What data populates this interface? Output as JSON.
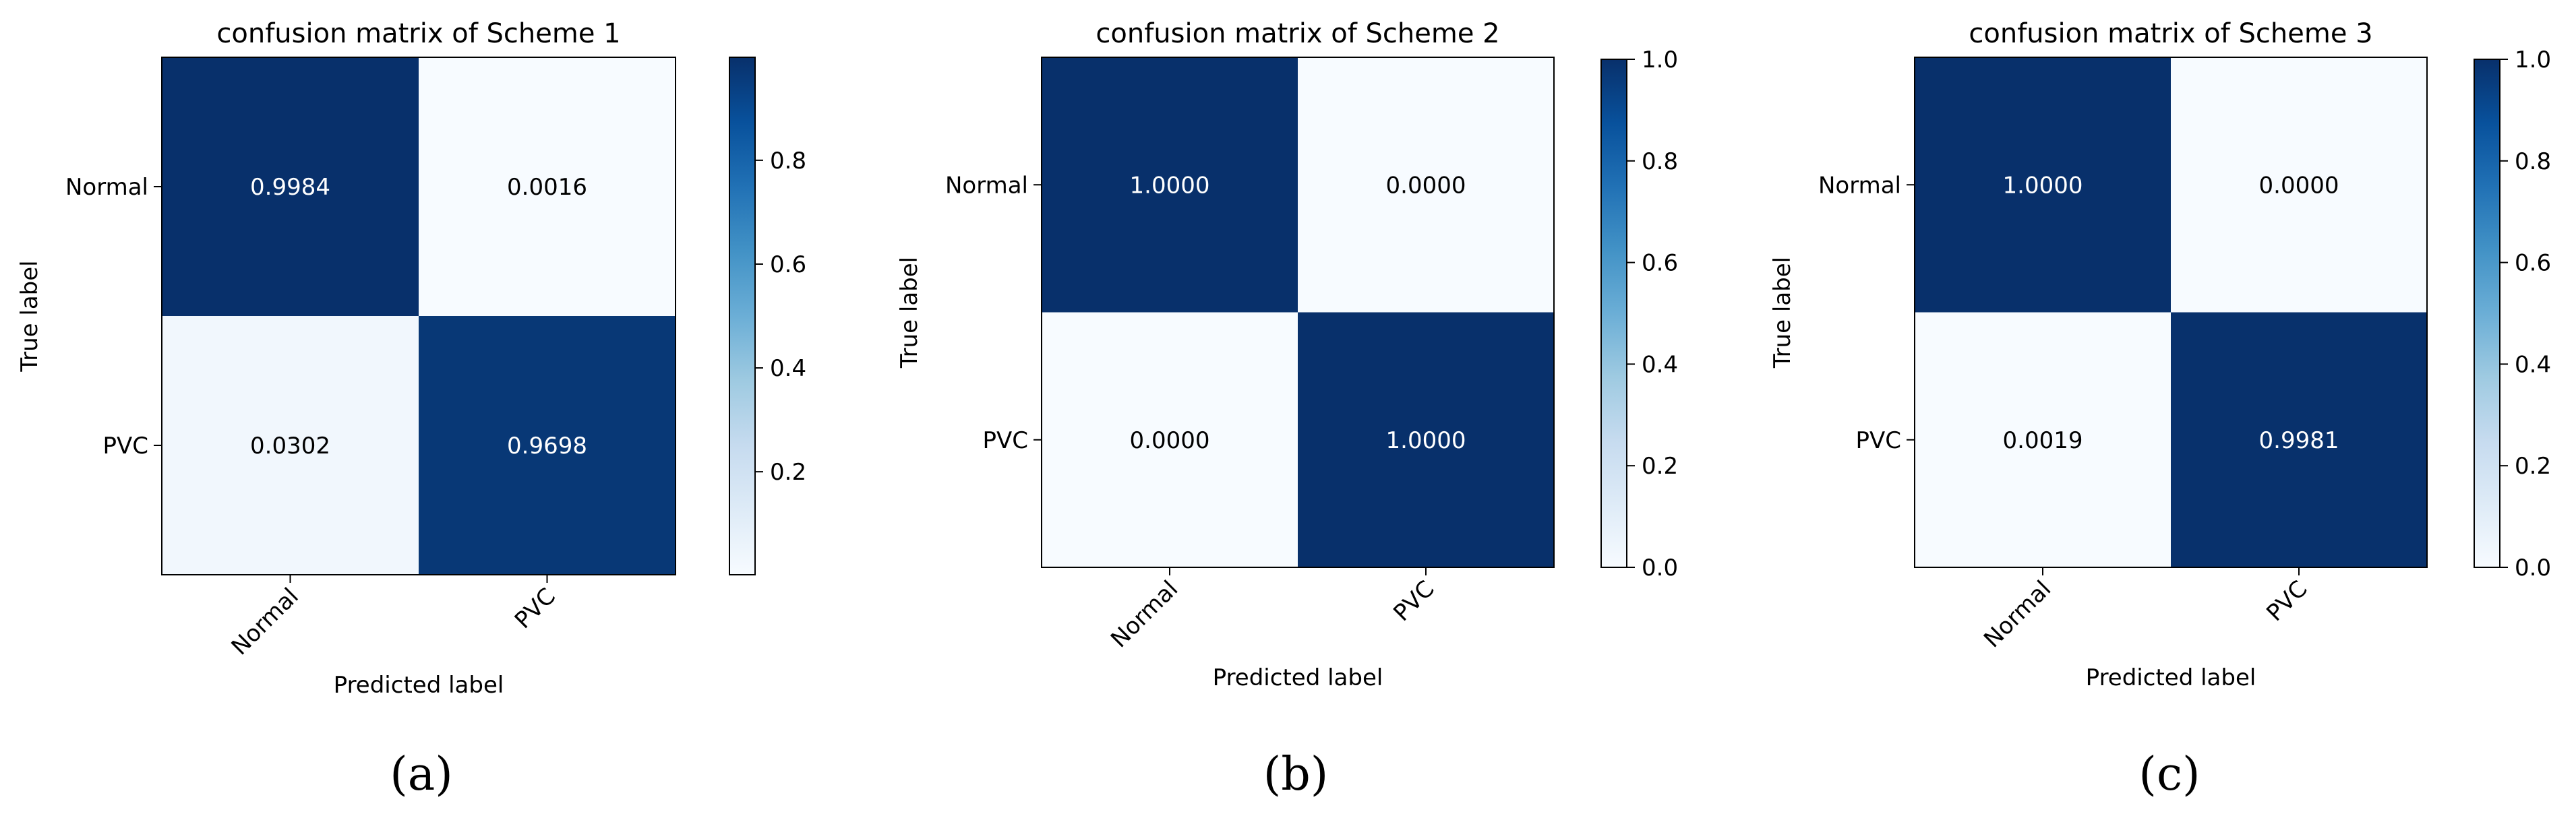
{
  "colors": {
    "high": "#08306b",
    "low": "#f7fbff",
    "text_on_dark": "#ffffff",
    "text_on_light": "#000000"
  },
  "chart_data": [
    {
      "type": "heatmap",
      "title": "confusion matrix of Scheme 1",
      "xlabel": "Predicted label",
      "ylabel": "True label",
      "panel_label": "(a)",
      "x_categories": [
        "Normal",
        "PVC"
      ],
      "y_categories": [
        "Normal",
        "PVC"
      ],
      "values": [
        [
          0.9984,
          0.0016
        ],
        [
          0.0302,
          0.9698
        ]
      ],
      "value_labels": [
        [
          "0.9984",
          "0.0016"
        ],
        [
          "0.0302",
          "0.9698"
        ]
      ],
      "colorbar": {
        "min": 0.0016,
        "max": 0.9984,
        "ticks": [
          0.2,
          0.4,
          0.6,
          0.8
        ],
        "tick_labels": [
          "0.2",
          "0.4",
          "0.6",
          "0.8"
        ],
        "colormap": "Blues"
      },
      "grid": false
    },
    {
      "type": "heatmap",
      "title": "confusion matrix of Scheme 2",
      "xlabel": "Predicted label",
      "ylabel": "True label",
      "panel_label": "(b)",
      "x_categories": [
        "Normal",
        "PVC"
      ],
      "y_categories": [
        "Normal",
        "PVC"
      ],
      "values": [
        [
          1.0,
          0.0
        ],
        [
          0.0,
          1.0
        ]
      ],
      "value_labels": [
        [
          "1.0000",
          "0.0000"
        ],
        [
          "0.0000",
          "1.0000"
        ]
      ],
      "colorbar": {
        "min": 0.0,
        "max": 1.0,
        "ticks": [
          0.0,
          0.2,
          0.4,
          0.6,
          0.8,
          1.0
        ],
        "tick_labels": [
          "0.0",
          "0.2",
          "0.4",
          "0.6",
          "0.8",
          "1.0"
        ],
        "colormap": "Blues"
      },
      "grid": false
    },
    {
      "type": "heatmap",
      "title": "confusion matrix of Scheme 3",
      "xlabel": "Predicted label",
      "ylabel": "True label",
      "panel_label": "(c)",
      "x_categories": [
        "Normal",
        "PVC"
      ],
      "y_categories": [
        "Normal",
        "PVC"
      ],
      "values": [
        [
          1.0,
          0.0
        ],
        [
          0.0019,
          0.9981
        ]
      ],
      "value_labels": [
        [
          "1.0000",
          "0.0000"
        ],
        [
          "0.0019",
          "0.9981"
        ]
      ],
      "colorbar": {
        "min": 0.0,
        "max": 1.0,
        "ticks": [
          0.0,
          0.2,
          0.4,
          0.6,
          0.8,
          1.0
        ],
        "tick_labels": [
          "0.0",
          "0.2",
          "0.4",
          "0.6",
          "0.8",
          "1.0"
        ],
        "colormap": "Blues"
      },
      "grid": false
    }
  ]
}
